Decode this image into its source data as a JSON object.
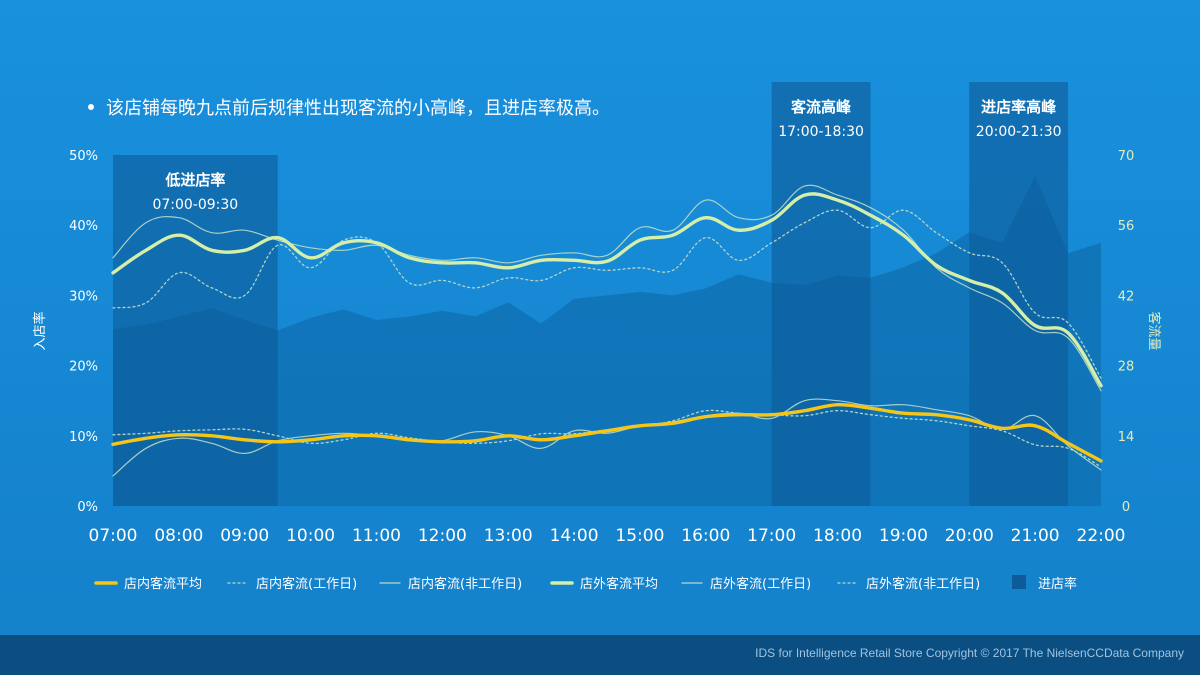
{
  "headline": "该店铺每晚九点前后规律性出现客流的小高峰，且进店率极高。",
  "footer": "IDS for Intelligence Retail Store  Copyright © 2017 The NielsenCCData Company",
  "colors": {
    "background": "#1a8ad8",
    "area_fill": "#0f6fb2",
    "highlight_band": "#0d5c99",
    "inner_avg": "#f5c518",
    "outer_avg": "#d6efa8",
    "thin_line": "#b9d9c8",
    "footer_bar": "#0b4e82"
  },
  "chart_data": {
    "type": "line",
    "title": "",
    "x_ticks": [
      "07:00",
      "08:00",
      "09:00",
      "10:00",
      "11:00",
      "12:00",
      "13:00",
      "14:00",
      "15:00",
      "16:00",
      "17:00",
      "18:00",
      "19:00",
      "20:00",
      "21:00",
      "22:00"
    ],
    "ylabel_left": "入店率",
    "ylabel_right": "客流量",
    "left_axis": {
      "ticks": [
        "0%",
        "10%",
        "20%",
        "30%",
        "40%",
        "50%"
      ],
      "range": [
        0,
        50
      ]
    },
    "right_axis": {
      "ticks": [
        "0",
        "14",
        "28",
        "42",
        "56",
        "70"
      ],
      "range": [
        0,
        70
      ]
    },
    "x": [
      7.0,
      7.5,
      8.0,
      8.5,
      9.0,
      9.5,
      10.0,
      10.5,
      11.0,
      11.5,
      12.0,
      12.5,
      13.0,
      13.5,
      14.0,
      14.5,
      15.0,
      15.5,
      16.0,
      16.5,
      17.0,
      17.5,
      18.0,
      18.5,
      19.0,
      19.5,
      20.0,
      20.5,
      21.0,
      21.5,
      22.0
    ],
    "annotations": [
      {
        "title": "低进店率",
        "subtitle": "07:00-09:30",
        "from": 7.0,
        "to": 9.5
      },
      {
        "title": "客流高峰",
        "subtitle": "17:00-18:30",
        "from": 17.0,
        "to": 18.5
      },
      {
        "title": "进店率高峰",
        "subtitle": "20:00-21:30",
        "from": 20.0,
        "to": 21.5
      }
    ],
    "series": [
      {
        "name": "进店率",
        "kind": "area",
        "axis": "left",
        "values": [
          25.2,
          25.8,
          27.0,
          28.2,
          26.5,
          25.0,
          26.8,
          28.0,
          26.5,
          27.0,
          27.8,
          27.0,
          29.0,
          26.0,
          29.5,
          30.0,
          30.5,
          30.0,
          31.0,
          33.0,
          31.8,
          31.5,
          32.8,
          32.5,
          34.0,
          36.0,
          39.0,
          37.5,
          47.0,
          36.0,
          37.5
        ]
      },
      {
        "name": "店内客流平均",
        "kind": "thick",
        "axis": "right",
        "color": "#f5c518",
        "values": [
          12.3,
          13.5,
          14.2,
          14.0,
          13.2,
          12.8,
          13.2,
          14.0,
          14.0,
          13.2,
          12.8,
          13.0,
          14.0,
          13.2,
          14.0,
          15.0,
          16.0,
          16.5,
          17.8,
          18.2,
          18.2,
          19.0,
          20.2,
          19.5,
          18.5,
          18.2,
          17.2,
          15.5,
          16.0,
          12.5,
          9.0
        ]
      },
      {
        "name": "店内客流(工作日)",
        "kind": "dotted",
        "axis": "right",
        "color": "#b9d9c8",
        "values": [
          14.2,
          14.5,
          15.0,
          15.2,
          15.3,
          14.0,
          12.5,
          13.2,
          14.5,
          13.6,
          12.8,
          12.5,
          13.0,
          14.4,
          14.4,
          15.2,
          15.8,
          17.0,
          19.0,
          18.5,
          18.2,
          18.0,
          19.0,
          18.2,
          17.5,
          17.0,
          16.0,
          15.0,
          12.2,
          11.5,
          7.8
        ]
      },
      {
        "name": "店内客流(非工作日)",
        "kind": "thin",
        "axis": "right",
        "color": "#b9d9c8",
        "values": [
          6.0,
          11.5,
          13.5,
          12.5,
          10.5,
          13.0,
          14.0,
          14.5,
          14.0,
          13.0,
          13.0,
          14.8,
          14.0,
          11.5,
          15.0,
          14.5,
          16.0,
          16.8,
          18.0,
          18.5,
          17.5,
          21.0,
          21.0,
          20.0,
          20.2,
          19.2,
          18.0,
          15.3,
          18.0,
          12.0,
          7.2
        ]
      },
      {
        "name": "店外客流平均",
        "kind": "thick",
        "axis": "right",
        "color": "#d6efa8",
        "values": [
          46.5,
          51.0,
          54.0,
          51.0,
          51.0,
          53.5,
          49.5,
          52.5,
          52.5,
          49.5,
          48.5,
          48.5,
          47.5,
          49.0,
          49.0,
          48.8,
          53.0,
          54.0,
          57.5,
          55.0,
          57.0,
          62.0,
          61.0,
          58.0,
          54.0,
          48.0,
          45.0,
          42.5,
          36.0,
          34.5,
          24.0
        ]
      },
      {
        "name": "店外客流(工作日)",
        "kind": "thin",
        "axis": "right",
        "color": "#b9d9c8",
        "values": [
          49.5,
          56.5,
          57.5,
          54.5,
          55.0,
          53.0,
          51.5,
          51.0,
          52.0,
          50.0,
          49.0,
          49.5,
          48.5,
          50.0,
          50.5,
          50.0,
          55.5,
          55.0,
          61.0,
          57.5,
          58.0,
          63.8,
          62.0,
          59.5,
          55.0,
          47.5,
          43.5,
          40.5,
          35.0,
          33.5,
          23.0
        ]
      },
      {
        "name": "店外客流(非工作日)",
        "kind": "dotted",
        "axis": "right",
        "color": "#b9d9c8",
        "values": [
          39.5,
          40.5,
          46.5,
          43.5,
          42.0,
          52.0,
          47.5,
          53.0,
          52.5,
          44.5,
          45.0,
          43.5,
          45.5,
          45.0,
          47.5,
          47.0,
          47.5,
          47.0,
          53.5,
          49.0,
          52.5,
          56.5,
          59.0,
          55.5,
          59.0,
          54.5,
          50.5,
          48.5,
          38.5,
          36.5,
          25.5
        ]
      }
    ],
    "legend_position": "bottom",
    "grid": false
  }
}
